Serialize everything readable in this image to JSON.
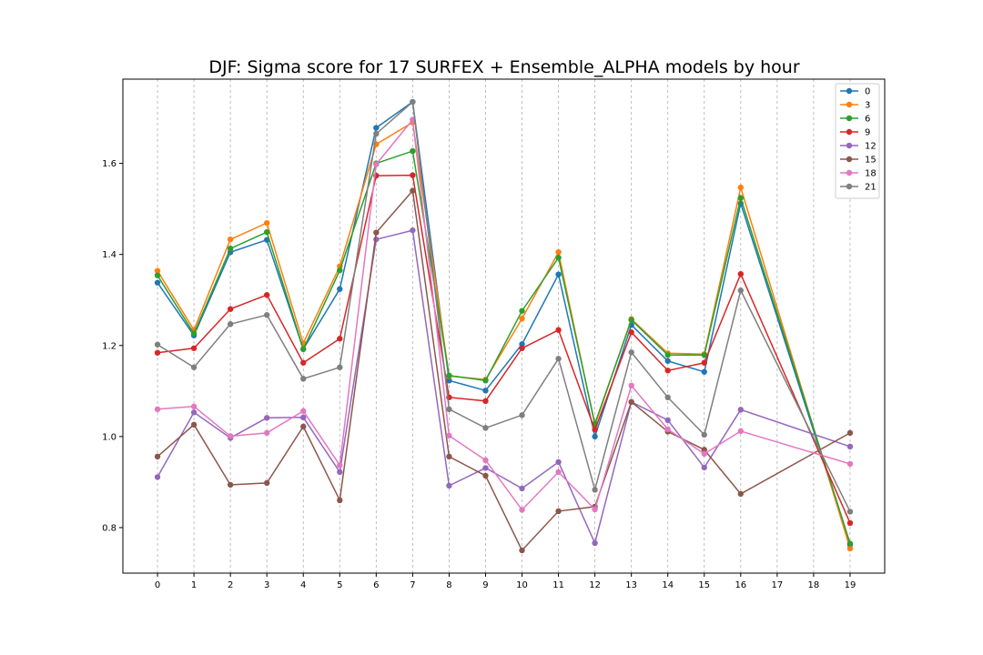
{
  "chart_data": {
    "type": "line",
    "title": "DJF: Sigma score for 17 SURFEX + Ensemble_ALPHA models by hour",
    "xlabel": "",
    "ylabel": "",
    "x": [
      0,
      1,
      2,
      3,
      4,
      5,
      6,
      7,
      8,
      9,
      10,
      11,
      12,
      13,
      14,
      15,
      16,
      17,
      18,
      19
    ],
    "xlim": [
      -0.95,
      19.95
    ],
    "ylim": [
      0.7,
      1.785
    ],
    "yticks": [
      0.8,
      1.0,
      1.2,
      1.4,
      1.6
    ],
    "ytick_labels": [
      "0.8",
      "1.0",
      "1.2",
      "1.4",
      "1.6"
    ],
    "grid": "vertical dashed",
    "legend_position": "top-right",
    "series": [
      {
        "name": "0",
        "color": "#1f77b4",
        "points": [
          [
            0,
            1.338
          ],
          [
            1,
            1.222
          ],
          [
            2,
            1.405
          ],
          [
            3,
            1.432
          ],
          [
            4,
            1.192
          ],
          [
            5,
            1.324
          ],
          [
            6,
            1.678
          ],
          [
            7,
            1.735
          ],
          [
            8,
            1.123
          ],
          [
            9,
            1.101
          ],
          [
            10,
            1.203
          ],
          [
            11,
            1.356
          ],
          [
            12,
            1.0
          ],
          [
            13,
            1.245
          ],
          [
            14,
            1.166
          ],
          [
            15,
            1.142
          ],
          [
            16,
            1.512
          ],
          [
            19,
            0.762
          ]
        ]
      },
      {
        "name": "3",
        "color": "#ff7f0e",
        "points": [
          [
            0,
            1.364
          ],
          [
            1,
            1.234
          ],
          [
            2,
            1.433
          ],
          [
            3,
            1.469
          ],
          [
            4,
            1.205
          ],
          [
            5,
            1.374
          ],
          [
            6,
            1.642
          ],
          [
            7,
            1.69
          ],
          [
            8,
            1.133
          ],
          [
            9,
            1.125
          ],
          [
            10,
            1.259
          ],
          [
            11,
            1.405
          ],
          [
            12,
            1.025
          ],
          [
            13,
            1.258
          ],
          [
            14,
            1.183
          ],
          [
            15,
            1.181
          ],
          [
            16,
            1.547
          ],
          [
            19,
            0.754
          ]
        ]
      },
      {
        "name": "6",
        "color": "#2ca02c",
        "points": [
          [
            0,
            1.354
          ],
          [
            1,
            1.226
          ],
          [
            2,
            1.413
          ],
          [
            3,
            1.449
          ],
          [
            4,
            1.192
          ],
          [
            5,
            1.365
          ],
          [
            6,
            1.6
          ],
          [
            7,
            1.627
          ],
          [
            8,
            1.134
          ],
          [
            9,
            1.123
          ],
          [
            10,
            1.276
          ],
          [
            11,
            1.393
          ],
          [
            12,
            1.028
          ],
          [
            13,
            1.256
          ],
          [
            14,
            1.179
          ],
          [
            15,
            1.179
          ],
          [
            16,
            1.524
          ],
          [
            19,
            0.765
          ]
        ]
      },
      {
        "name": "9",
        "color": "#d62728",
        "points": [
          [
            0,
            1.184
          ],
          [
            1,
            1.194
          ],
          [
            2,
            1.28
          ],
          [
            3,
            1.311
          ],
          [
            4,
            1.162
          ],
          [
            5,
            1.215
          ],
          [
            6,
            1.573
          ],
          [
            7,
            1.574
          ],
          [
            8,
            1.086
          ],
          [
            9,
            1.078
          ],
          [
            10,
            1.194
          ],
          [
            11,
            1.234
          ],
          [
            12,
            1.015
          ],
          [
            13,
            1.229
          ],
          [
            14,
            1.145
          ],
          [
            15,
            1.162
          ],
          [
            16,
            1.357
          ],
          [
            19,
            0.81
          ]
        ]
      },
      {
        "name": "12",
        "color": "#9467bd",
        "points": [
          [
            0,
            0.911
          ],
          [
            1,
            1.053
          ],
          [
            2,
            0.997
          ],
          [
            3,
            1.041
          ],
          [
            4,
            1.042
          ],
          [
            5,
            0.922
          ],
          [
            6,
            1.433
          ],
          [
            7,
            1.453
          ],
          [
            8,
            0.892
          ],
          [
            9,
            0.931
          ],
          [
            10,
            0.886
          ],
          [
            11,
            0.944
          ],
          [
            12,
            0.766
          ],
          [
            13,
            1.076
          ],
          [
            14,
            1.036
          ],
          [
            15,
            0.932
          ],
          [
            16,
            1.059
          ],
          [
            19,
            0.978
          ]
        ]
      },
      {
        "name": "15",
        "color": "#8c564b",
        "points": [
          [
            0,
            0.956
          ],
          [
            1,
            1.026
          ],
          [
            2,
            0.894
          ],
          [
            3,
            0.898
          ],
          [
            4,
            1.022
          ],
          [
            5,
            0.86
          ],
          [
            6,
            1.448
          ],
          [
            7,
            1.54
          ],
          [
            8,
            0.956
          ],
          [
            9,
            0.914
          ],
          [
            10,
            0.75
          ],
          [
            11,
            0.836
          ],
          [
            12,
            0.846
          ],
          [
            13,
            1.076
          ],
          [
            14,
            1.011
          ],
          [
            15,
            0.971
          ],
          [
            16,
            0.874
          ],
          [
            19,
            1.008
          ]
        ]
      },
      {
        "name": "18",
        "color": "#e377c2",
        "points": [
          [
            0,
            1.06
          ],
          [
            1,
            1.066
          ],
          [
            2,
            1.001
          ],
          [
            3,
            1.008
          ],
          [
            4,
            1.056
          ],
          [
            5,
            0.937
          ],
          [
            6,
            1.598
          ],
          [
            7,
            1.696
          ],
          [
            8,
            1.002
          ],
          [
            9,
            0.948
          ],
          [
            10,
            0.839
          ],
          [
            11,
            0.922
          ],
          [
            12,
            0.84
          ],
          [
            13,
            1.112
          ],
          [
            14,
            1.016
          ],
          [
            15,
            0.962
          ],
          [
            16,
            1.012
          ],
          [
            19,
            0.94
          ]
        ]
      },
      {
        "name": "21",
        "color": "#7f7f7f",
        "points": [
          [
            0,
            1.202
          ],
          [
            1,
            1.152
          ],
          [
            2,
            1.247
          ],
          [
            3,
            1.267
          ],
          [
            4,
            1.127
          ],
          [
            5,
            1.152
          ],
          [
            6,
            1.665
          ],
          [
            7,
            1.735
          ],
          [
            8,
            1.06
          ],
          [
            9,
            1.019
          ],
          [
            10,
            1.047
          ],
          [
            11,
            1.171
          ],
          [
            12,
            0.883
          ],
          [
            13,
            1.185
          ],
          [
            14,
            1.086
          ],
          [
            15,
            1.004
          ],
          [
            16,
            1.321
          ],
          [
            19,
            0.835
          ]
        ]
      }
    ]
  }
}
